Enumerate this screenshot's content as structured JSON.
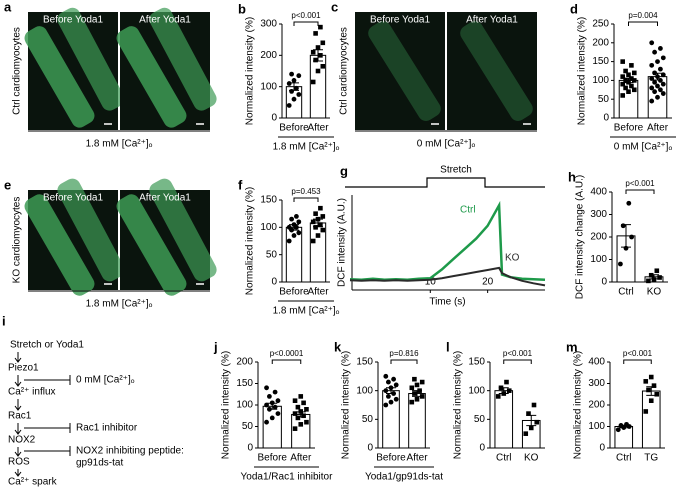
{
  "micrographs": [
    {
      "panel": "a",
      "before": "Before Yoda1",
      "after": "After Yoda1",
      "side": "Ctrl cardiomyocytes",
      "caption": "1.8 mM [Ca²⁺]ₒ"
    },
    {
      "panel": "c",
      "before": "Before Yoda1",
      "after": "After Yoda1",
      "side": "Ctrl cardiomyocytes",
      "caption": "0 mM [Ca²⁺]ₒ"
    },
    {
      "panel": "e",
      "before": "Before Yoda1",
      "after": "After Yoda1",
      "side": "KO cardiomyocytes",
      "caption": "1.8 mM [Ca²⁺]ₒ"
    }
  ],
  "pathway": {
    "panel": "i",
    "nodes": [
      "Stretch or Yoda1",
      "Piezo1",
      "Ca²⁺ influx",
      "Rac1",
      "NOX2",
      "ROS",
      "Ca²⁺ spark"
    ],
    "inhibitors": [
      [
        "0 mM [Ca²⁺]ₒ"
      ],
      [
        "Rac1 inhibitor"
      ],
      [
        "NOX2 inhibiting peptide:",
        "gp91ds-tat"
      ]
    ]
  },
  "chart_data": [
    {
      "type": "bar",
      "panel": "b",
      "y_label": "Normalized intensity (%)",
      "categories": [
        "Before",
        "After"
      ],
      "values": [
        100,
        200
      ],
      "errors": [
        12,
        18
      ],
      "points": [
        [
          40,
          60,
          75,
          85,
          95,
          110,
          120,
          135,
          140
        ],
        [
          115,
          150,
          165,
          185,
          200,
          210,
          225,
          240,
          270,
          290
        ]
      ],
      "markers": [
        "circle",
        "square"
      ],
      "annotation": "p<0.001",
      "group_label": "1.8 mM [Ca²⁺]ₒ",
      "ylim": [
        0,
        300
      ],
      "yticks": [
        0,
        100,
        200,
        300
      ]
    },
    {
      "type": "bar",
      "panel": "d",
      "y_label": "Normalized intensity (%)",
      "categories": [
        "Before",
        "After"
      ],
      "values": [
        100,
        110
      ],
      "errors": [
        6,
        9
      ],
      "points": [
        [
          60,
          70,
          75,
          80,
          85,
          90,
          95,
          100,
          100,
          105,
          110,
          115,
          120,
          125,
          140,
          150
        ],
        [
          45,
          55,
          65,
          70,
          75,
          80,
          85,
          90,
          95,
          100,
          105,
          110,
          115,
          120,
          130,
          140,
          150,
          160,
          175,
          185,
          200
        ]
      ],
      "markers": [
        "square",
        "circle"
      ],
      "annotation": "p=0.004",
      "group_label": "0 mM [Ca²⁺]ₒ",
      "ylim": [
        0,
        250
      ],
      "yticks": [
        0,
        50,
        100,
        150,
        200,
        250
      ]
    },
    {
      "type": "bar",
      "panel": "f",
      "y_label": "Normalized intensity (%)",
      "categories": [
        "Before",
        "After"
      ],
      "values": [
        100,
        108
      ],
      "errors": [
        5,
        7
      ],
      "points": [
        [
          75,
          85,
          90,
          95,
          100,
          100,
          105,
          110,
          115,
          120
        ],
        [
          75,
          85,
          95,
          100,
          105,
          110,
          115,
          120,
          125,
          135
        ]
      ],
      "markers": [
        "circle",
        "square"
      ],
      "annotation": "p=0.453",
      "group_label": "1.8 mM [Ca²⁺]ₒ",
      "ylim": [
        0,
        150
      ],
      "yticks": [
        0,
        50,
        100,
        150
      ]
    },
    {
      "type": "line",
      "panel": "g",
      "y_label": "DCF intensity (A.U.)",
      "x_label": "Time (s)",
      "stretch_label": "Stretch",
      "x": [
        -4,
        -2,
        0,
        2,
        4,
        6,
        8,
        10,
        12,
        14,
        16,
        18,
        20,
        22,
        22.5,
        24,
        26,
        28,
        30
      ],
      "series": [
        {
          "name": "Ctrl",
          "color": "#1e9a4a",
          "values": [
            6,
            5,
            7,
            5,
            6,
            5,
            7,
            8,
            25,
            45,
            65,
            85,
            110,
            150,
            15,
            10,
            7,
            6,
            5
          ]
        },
        {
          "name": "KO",
          "color": "#2b2b2b",
          "values": [
            4,
            3,
            4,
            3,
            4,
            3,
            4,
            5,
            8,
            12,
            16,
            20,
            24,
            28,
            18,
            10,
            3,
            -2,
            -6
          ]
        }
      ],
      "xlim": [
        -4,
        30
      ],
      "xticks": [
        10,
        20
      ],
      "ylim": [
        -15,
        170
      ]
    },
    {
      "type": "bar",
      "panel": "h",
      "y_label": "DCF intensity change (A.U.)",
      "categories": [
        "Ctrl",
        "KO"
      ],
      "values": [
        205,
        23
      ],
      "errors": [
        50,
        9
      ],
      "points": [
        [
          80,
          150,
          200,
          250,
          350
        ],
        [
          5,
          10,
          20,
          30,
          50
        ]
      ],
      "markers": [
        "circle",
        "square"
      ],
      "annotation": "p<0.001",
      "ylim": [
        0,
        400
      ],
      "yticks": [
        0,
        100,
        200,
        300,
        400
      ]
    },
    {
      "type": "bar",
      "panel": "j",
      "y_label": "Normalized intensity (%)",
      "categories": [
        "Before",
        "After"
      ],
      "values": [
        97,
        78
      ],
      "errors": [
        7,
        6
      ],
      "points": [
        [
          60,
          70,
          80,
          90,
          95,
          100,
          105,
          110,
          120,
          130,
          140
        ],
        [
          45,
          55,
          60,
          70,
          75,
          80,
          85,
          90,
          95,
          105,
          110,
          120
        ]
      ],
      "markers": [
        "circle",
        "square"
      ],
      "annotation": "p<0.0001",
      "group_label": "Yoda1/Rac1 inhibitor",
      "ylim": [
        0,
        200
      ],
      "yticks": [
        0,
        50,
        100,
        150,
        200
      ]
    },
    {
      "type": "bar",
      "panel": "k",
      "y_label": "Normalized intensity (%)",
      "categories": [
        "Before",
        "After"
      ],
      "values": [
        100,
        95
      ],
      "errors": [
        5,
        5
      ],
      "points": [
        [
          75,
          80,
          85,
          90,
          95,
          100,
          105,
          110,
          115,
          120,
          125
        ],
        [
          80,
          85,
          90,
          95,
          100,
          105,
          110,
          115,
          120
        ]
      ],
      "markers": [
        "circle",
        "square"
      ],
      "annotation": "p=0.816",
      "group_label": "Yoda1/gp91ds-tat",
      "ylim": [
        0,
        150
      ],
      "yticks": [
        0,
        50,
        100,
        150
      ]
    },
    {
      "type": "bar",
      "panel": "l",
      "y_label": "Normalized intensity (%)",
      "categories": [
        "Ctrl",
        "KO"
      ],
      "values": [
        100,
        48
      ],
      "errors": [
        5,
        9
      ],
      "points": [
        [
          90,
          95,
          100,
          105,
          115
        ],
        [
          25,
          35,
          45,
          60,
          75
        ]
      ],
      "markers": [
        "square",
        "square"
      ],
      "annotation": "p<0.001",
      "ylim": [
        0,
        150
      ],
      "yticks": [
        0,
        50,
        100,
        150
      ]
    },
    {
      "type": "bar",
      "panel": "m",
      "y_label": "Normalized intensity (%)",
      "categories": [
        "Ctrl",
        "TG"
      ],
      "values": [
        100,
        265
      ],
      "errors": [
        6,
        20
      ],
      "points": [
        [
          85,
          95,
          100,
          105,
          110
        ],
        [
          170,
          220,
          250,
          270,
          290,
          310,
          330
        ]
      ],
      "markers": [
        "circle",
        "square"
      ],
      "annotation": "p<0.001",
      "ylim": [
        0,
        400
      ],
      "yticks": [
        0,
        100,
        200,
        300,
        400
      ]
    }
  ]
}
